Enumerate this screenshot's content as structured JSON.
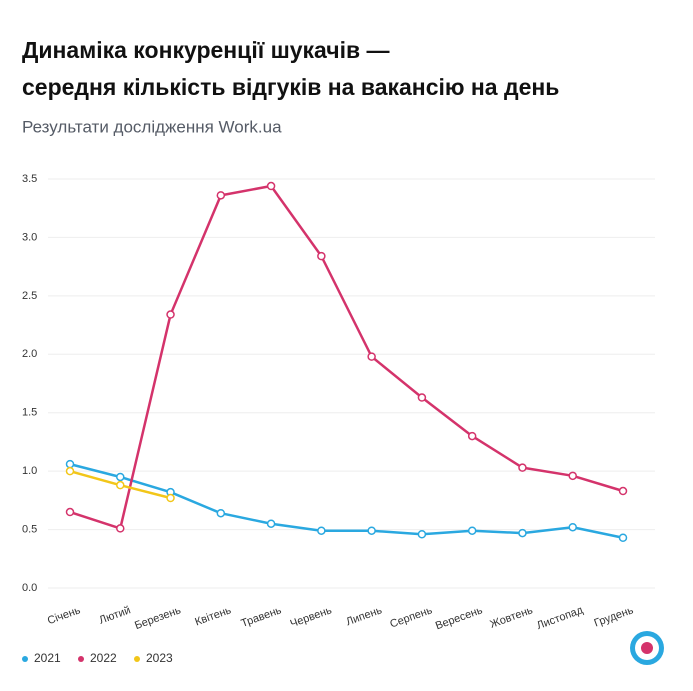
{
  "chart_data": {
    "type": "line",
    "title": [
      "Динаміка конкуренції шукачів —",
      "середня кількість відгуків на вакансію на день"
    ],
    "subtitle": "Результати дослідження Work.ua",
    "categories": [
      "Січень",
      "Лютий",
      "Березень",
      "Квітень",
      "Травень",
      "Червень",
      "Липень",
      "Серпень",
      "Вересень",
      "Жовтень",
      "Листопад",
      "Грудень"
    ],
    "series": [
      {
        "name": "2021",
        "color": "#2aa8e0",
        "values": [
          1.06,
          0.95,
          0.82,
          0.64,
          0.55,
          0.49,
          0.49,
          0.46,
          0.49,
          0.47,
          0.52,
          0.43
        ]
      },
      {
        "name": "2022",
        "color": "#d4336b",
        "values": [
          0.65,
          0.51,
          2.34,
          3.36,
          3.44,
          2.84,
          1.98,
          1.63,
          1.3,
          1.03,
          0.96,
          0.83
        ]
      },
      {
        "name": "2023",
        "color": "#f2c619",
        "values": [
          1.0,
          0.88,
          0.77,
          null,
          null,
          null,
          null,
          null,
          null,
          null,
          null,
          null
        ]
      }
    ],
    "ylim": [
      0,
      3.5
    ],
    "yticks": [
      {
        "value": 0,
        "label": "0.0"
      },
      0.5,
      {
        "value": 1,
        "label": "1.0"
      },
      1.5,
      {
        "value": 2,
        "label": "2.0"
      },
      2.5,
      {
        "value": 3,
        "label": "3.0"
      },
      3.5
    ],
    "grid": true
  }
}
